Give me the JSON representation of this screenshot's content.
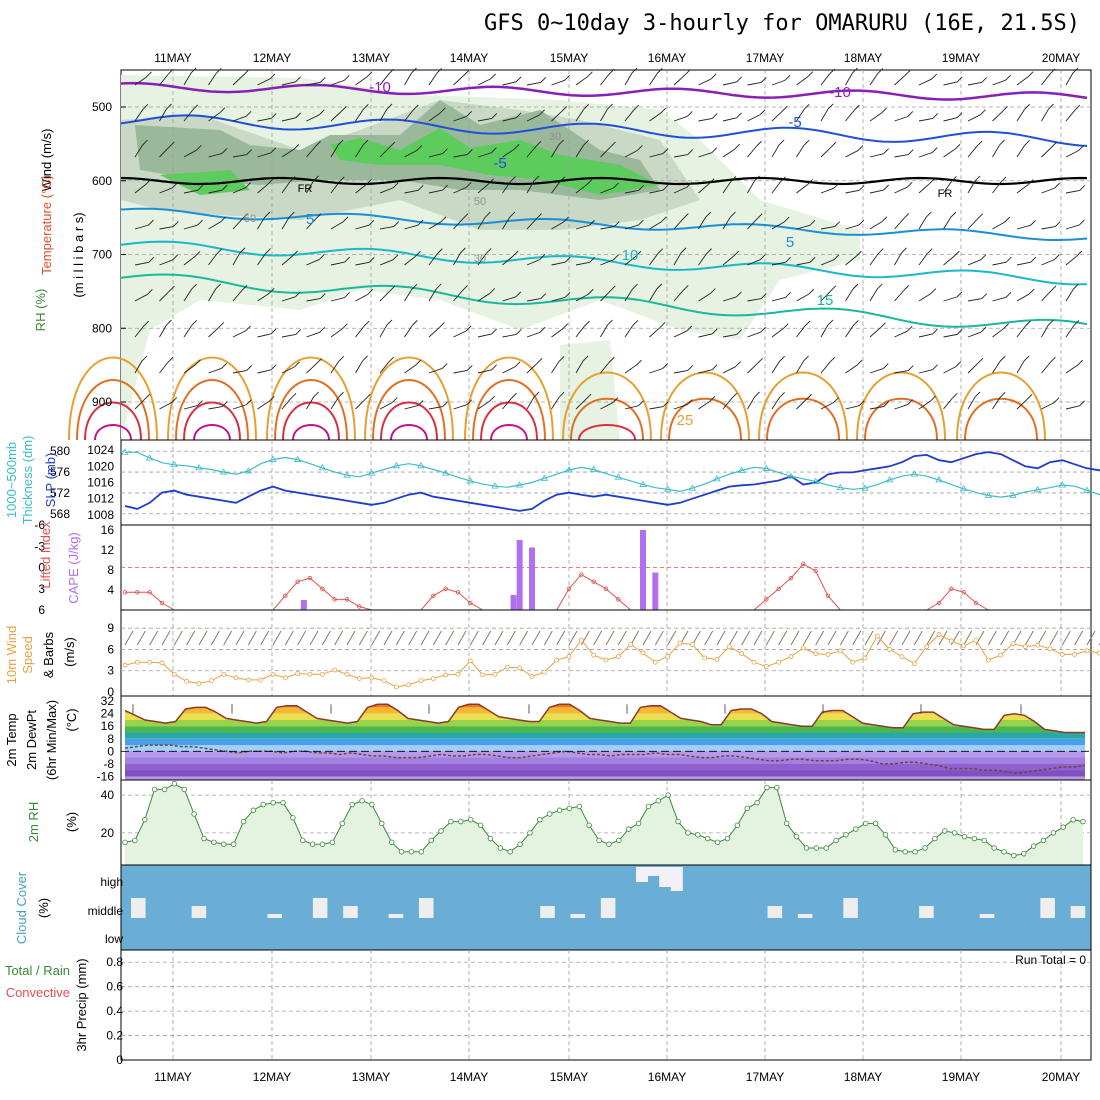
{
  "title": "GFS 0~10day 3-hourly for OMARURU (16E, 21.5S)",
  "dates": [
    "11MAY",
    "12MAY",
    "13MAY",
    "14MAY",
    "15MAY",
    "16MAY",
    "17MAY",
    "18MAY",
    "19MAY",
    "20MAY"
  ],
  "colors": {
    "grid": "#a0a0a0",
    "slp": "#1e3cc8",
    "thickness": "#3cbcc8",
    "lifted": "#e05050",
    "cape": "#b070f0",
    "wind10": "#e8a040",
    "rh": "#3a8a3a",
    "cloud_bg": "#6aaed6",
    "cloud_fill": "#eeeeee"
  },
  "panels": {
    "upper": {
      "ylabel_wind": "Wind (m/s)",
      "ylabel_temp": "Temperature (°C)",
      "ylabel_p": "(m i l l i b a r s)",
      "ylabel_rh": "RH (%)",
      "pressure_ticks": [
        "500",
        "600",
        "700",
        "800",
        "900"
      ],
      "contour_labels": [
        "-10",
        "-10",
        "-5",
        "-5",
        "-5",
        "FR",
        "FR",
        "5",
        "5",
        "10",
        "15",
        "25",
        "50",
        "50",
        "30",
        "30"
      ]
    },
    "slp": {
      "ylabel_thick": "Thickness (dm)",
      "ylabel_thick2": "1000~500mb",
      "ylabel_slp": "SLP (mb)",
      "left_ticks": [
        "580",
        "576",
        "572",
        "568"
      ],
      "right_ticks": [
        "1024",
        "1020",
        "1016",
        "1012",
        "1008"
      ]
    },
    "cape": {
      "ylabel_li": "Lifted Index",
      "ylabel_cape": "CAPE (J/kg)",
      "left_ticks": [
        "-6",
        "-3",
        "0",
        "3",
        "6"
      ],
      "right_ticks": [
        "16",
        "12",
        "8",
        "4"
      ]
    },
    "wind10": {
      "ylabel1": "10m Wind",
      "ylabel2": "Speed",
      "ylabel3": "& Barbs",
      "unit": "(m/s)",
      "ticks": [
        "9",
        "6",
        "3",
        "0"
      ]
    },
    "temp2m": {
      "ylabel1": "2m Temp",
      "ylabel2": "2m DewPt",
      "ylabel3": "(6hr Min/Max)",
      "unit": "(°C)",
      "ticks": [
        "32",
        "24",
        "16",
        "8",
        "0",
        "-8",
        "-16"
      ]
    },
    "rh2m": {
      "ylabel": "2m RH",
      "unit": "(%)",
      "ticks": [
        "40",
        "20"
      ]
    },
    "cloud": {
      "ylabel": "Cloud Cover",
      "unit": "(%)",
      "levels": [
        "high",
        "middle",
        "low"
      ]
    },
    "precip": {
      "ylabel1": "Total / Rain",
      "ylabel2": "Convective",
      "ylabel3": "3hr Precip (mm)",
      "run_total": "Run Total = 0",
      "ticks": [
        "0.8",
        "0.6",
        "0.4",
        "0.2",
        "0"
      ]
    }
  },
  "chart_data": [
    {
      "type": "line",
      "name": "slp_thickness",
      "x_step_hours": 3,
      "series": [
        {
          "name": "SLP (mb)",
          "values": [
            1010.2,
            1009.5,
            1011,
            1013.5,
            1014,
            1013,
            1012.5,
            1012,
            1011.5,
            1011,
            1012.5,
            1014,
            1015,
            1014,
            1013.5,
            1013,
            1012.5,
            1012,
            1011.5,
            1011,
            1010.5,
            1011,
            1012,
            1013,
            1013.5,
            1012.5,
            1012,
            1011.5,
            1011,
            1010.5,
            1010,
            1009.5,
            1009,
            1009.5,
            1011.5,
            1013,
            1013.5,
            1013,
            1012.5,
            1013,
            1012.5,
            1012,
            1011.5,
            1011,
            1010.5,
            1011,
            1012,
            1013,
            1014,
            1015,
            1015.3,
            1015.5,
            1016,
            1016.5,
            1017.5,
            1015.5,
            1016,
            1018,
            1018.5,
            1018.5,
            1019,
            1019.5,
            1020,
            1021,
            1022.5,
            1022.8,
            1021.5,
            1021,
            1022,
            1023,
            1023.5,
            1023,
            1021.5,
            1020,
            1019.5,
            1021,
            1021.5,
            1020.5,
            1019.5,
            1019,
            1018.5,
            1018,
            1019.5,
            1021,
            1022,
            1021.5,
            1020.5,
            1018.5,
            1016,
            1014.5,
            1014.2,
            1014.5,
            1015,
            1015.5,
            1016.5,
            1017.5,
            1019,
            1019.5,
            1019.8,
            1020,
            1019.5,
            1019.5,
            1019.8,
            1020,
            1019,
            1017,
            1015,
            1014,
            1015.5,
            1017.5,
            1019,
            1020,
            1019.5,
            1020.2,
            1021
          ]
        },
        {
          "name": "Thickness (dm)",
          "values": [
            579.8,
            579.8,
            578.7,
            577.8,
            577.4,
            577.2,
            576.8,
            576.5,
            576,
            575.6,
            576.2,
            577.6,
            578.4,
            578.8,
            578.4,
            577.6,
            576.8,
            576,
            575.4,
            575.1,
            575.8,
            576.5,
            577.2,
            577.6,
            577.2,
            576.5,
            575.8,
            575,
            574.3,
            573.7,
            573.3,
            573.1,
            573.5,
            574,
            574.8,
            575.6,
            576.4,
            576.9,
            576.5,
            575.7,
            575,
            574.3,
            573.6,
            573,
            572.7,
            572.3,
            572.9,
            573.7,
            574.7,
            575.6,
            576.3,
            576.9,
            576.7,
            575.9,
            575.2,
            574.7,
            574.2,
            573.5,
            573,
            572.7,
            572.9,
            573.6,
            574.5,
            575.2,
            575.6,
            575.2,
            574.5,
            573.6,
            572.8,
            572.1,
            571.5,
            571.2,
            571.5,
            572.2,
            572.6,
            573,
            573.5,
            573.3,
            572.5,
            571.7,
            570.9,
            570.2,
            569.9,
            570.4,
            571.2,
            571.8,
            572.5,
            573,
            572.3,
            571.6,
            570.9,
            570.3,
            569.8,
            569.5,
            569.4,
            569.7,
            570.4,
            571,
            571.6,
            571.3,
            570.6,
            570,
            569.5,
            569,
            568.6,
            568.3,
            568.7,
            569.4,
            570,
            570.4,
            570,
            569.4,
            568.9,
            568.6,
            568.6,
            568.8
          ]
        }
      ],
      "ylim_left": [
        567,
        581
      ],
      "ylim_right": [
        1007,
        1025
      ]
    },
    {
      "type": "bar",
      "name": "cape_lifted_index",
      "x_step_hours": 3,
      "series": [
        {
          "name": "CAPE (J/kg)",
          "bars": [
            [
              14.5,
              2
            ],
            [
              31.5,
              3
            ],
            [
              32,
              14
            ],
            [
              33,
              12.5
            ],
            [
              42,
              16
            ],
            [
              43,
              7.5
            ]
          ]
        },
        {
          "name": "Lifted Index",
          "values": [
            3.5,
            3.5,
            3.5,
            5,
            6,
            6,
            6,
            6,
            6,
            6,
            6,
            6,
            6,
            4,
            2,
            1.5,
            3,
            4.5,
            4.5,
            5.5,
            6,
            6,
            6,
            6,
            6,
            4,
            3,
            3.5,
            5,
            6,
            6,
            6,
            6,
            6,
            6,
            6,
            3,
            1,
            2,
            3,
            4.5,
            6,
            6,
            6,
            6,
            6,
            6,
            6,
            6,
            6,
            6,
            6,
            4.5,
            3,
            1.5,
            -0.5,
            0.5,
            4,
            6,
            6,
            6,
            6,
            6,
            6,
            6,
            6,
            5,
            3,
            3.5,
            5,
            6,
            6,
            6,
            6
          ]
        }
      ],
      "ylim_left": [
        -6,
        6
      ],
      "ylim_right": [
        0,
        17
      ]
    },
    {
      "type": "line",
      "name": "wind10",
      "x_step_hours": 3,
      "series": [
        {
          "name": "10m Wind Speed",
          "values": [
            3.8,
            4.2,
            4.2,
            4.1,
            2.5,
            1.5,
            1.2,
            1.6,
            2.5,
            2,
            1.7,
            1.7,
            2.5,
            2,
            2.6,
            2.5,
            2.5,
            3.1,
            2.5,
            1.9,
            2,
            1.6,
            0.7,
            1,
            1.6,
            1.9,
            2.4,
            2.5,
            4.4,
            2.4,
            2.5,
            3.5,
            3.4,
            2.2,
            2.8,
            4.5,
            5,
            7.3,
            5.2,
            4.5,
            5,
            6.7,
            5.5,
            4.2,
            5,
            6.9,
            6.7,
            4.8,
            4.6,
            6.4,
            5.4,
            4.2,
            3.6,
            4.2,
            5,
            6.2,
            5.4,
            5.3,
            5.8,
            4.2,
            4.8,
            7.9,
            6,
            5,
            4,
            6.4,
            8.1,
            7.2,
            6.5,
            7.3,
            4.5,
            5.2,
            6.8,
            6.4,
            6.6,
            6.1,
            5.3,
            5.3,
            5.8,
            5.5,
            5.9,
            6.2,
            4.8,
            5.1,
            5,
            5.2,
            4.8,
            7.5,
            7.4,
            6.3,
            6.7,
            4.5,
            6.6,
            5.5,
            6.2,
            5.1,
            6.2,
            5,
            4.3,
            7.9,
            5.3,
            4.3,
            6.3,
            8.4,
            4.5,
            5.6,
            6.2,
            6,
            4.2,
            5.1,
            5.7,
            7.4
          ]
        }
      ],
      "ylim": [
        0,
        11
      ]
    },
    {
      "type": "area",
      "name": "temp2m",
      "x_step_hours": 3,
      "series": [
        {
          "name": "2m Temp",
          "values": [
            26,
            23,
            20,
            19,
            18,
            19,
            27,
            28,
            28,
            25,
            21,
            20,
            19,
            18,
            19,
            28,
            29,
            29,
            25,
            21,
            20,
            19,
            18,
            19,
            28,
            30,
            30,
            26,
            21,
            20,
            19,
            18,
            19,
            28,
            30,
            30,
            26,
            22,
            21,
            20,
            19,
            19,
            28,
            30,
            30,
            26,
            21,
            20,
            19,
            18,
            18,
            28,
            29,
            29,
            25,
            21,
            20,
            19,
            17,
            17,
            26,
            27,
            27,
            24,
            19,
            18,
            17,
            16,
            16,
            25,
            26,
            26,
            22,
            18,
            17,
            16,
            15,
            15,
            24,
            25,
            25,
            21,
            17,
            16,
            15,
            14,
            14,
            23,
            24,
            23,
            19,
            14,
            13,
            12,
            12,
            12
          ]
        },
        {
          "name": "2m DewPt",
          "values": [
            2,
            3,
            4,
            4,
            4,
            3,
            3,
            2,
            1,
            0,
            -1,
            0,
            0,
            0,
            -1,
            0,
            0,
            -1,
            -1,
            -2,
            -1,
            -2,
            -3,
            -3,
            -4,
            -4,
            -4,
            -3,
            -2,
            -3,
            -3,
            -2,
            -2,
            -3,
            -4,
            -4,
            -3,
            -2,
            -1,
            0,
            -1,
            -2,
            -2,
            -3,
            -2,
            -2,
            -2,
            -1,
            -2,
            -2,
            -3,
            -4,
            -4,
            -3,
            -3,
            -4,
            -5,
            -6,
            -6,
            -5,
            -5,
            -6,
            -6,
            -6,
            -5,
            -5,
            -6,
            -8,
            -8,
            -7,
            -7,
            -8,
            -9,
            -11,
            -11,
            -11,
            -12,
            -12,
            -13,
            -14,
            -13,
            -12,
            -11,
            -10,
            -10,
            -9
          ]
        }
      ],
      "ylim": [
        -17,
        34
      ]
    },
    {
      "type": "area",
      "name": "rh2m",
      "x_step_hours": 3,
      "series": [
        {
          "name": "2m RH",
          "values": [
            15,
            16,
            27,
            43,
            43,
            46,
            43,
            30,
            17,
            15,
            14,
            14,
            26,
            32,
            35,
            36,
            36,
            28,
            16,
            14,
            14,
            15,
            25,
            35,
            37,
            35,
            25,
            15,
            10,
            10,
            10,
            16,
            21,
            26,
            26,
            27,
            24,
            17,
            12,
            10,
            14,
            20,
            27,
            30,
            32,
            33,
            34,
            24,
            16,
            14,
            16,
            22,
            25,
            34,
            37,
            40,
            26,
            20,
            19,
            17,
            15,
            17,
            24,
            33,
            36,
            44,
            44,
            25,
            18,
            12,
            12,
            12,
            16,
            19,
            22,
            25,
            25,
            19,
            11,
            10,
            10,
            12,
            17,
            21,
            20,
            18,
            17,
            16,
            12,
            10,
            8,
            9,
            13,
            16,
            20,
            23,
            27,
            26
          ]
        }
      ],
      "ylim": [
        3,
        48
      ]
    },
    {
      "type": "bar",
      "name": "cloud_cover",
      "levels": [
        "high",
        "middle",
        "low"
      ],
      "series": [
        {
          "name": "middle",
          "bars": [
            [
              0,
              5
            ],
            [
              4,
              5
            ],
            [
              9,
              5
            ],
            [
              12,
              5
            ],
            [
              14,
              5
            ],
            [
              17,
              5
            ],
            [
              19,
              5
            ],
            [
              27,
              5
            ],
            [
              29,
              5
            ],
            [
              31,
              5
            ],
            [
              42,
              5
            ],
            [
              44,
              5
            ],
            [
              47,
              5
            ],
            [
              52,
              5
            ],
            [
              56,
              5
            ],
            [
              60,
              5
            ],
            [
              62,
              5
            ],
            [
              64,
              5
            ],
            [
              65,
              5
            ],
            [
              67,
              5
            ],
            [
              69,
              5
            ],
            [
              71,
              5
            ],
            [
              73,
              5
            ],
            [
              75,
              5
            ],
            [
              77,
              5
            ]
          ]
        },
        {
          "name": "high",
          "bars": [
            [
              52,
              15
            ],
            [
              54,
              9
            ],
            [
              56,
              20
            ],
            [
              58,
              24
            ]
          ]
        }
      ]
    },
    {
      "type": "bar",
      "name": "precip",
      "series": [
        {
          "name": "3hr Precip (mm)",
          "values": []
        }
      ],
      "ylim": [
        0,
        0.9
      ]
    }
  ]
}
